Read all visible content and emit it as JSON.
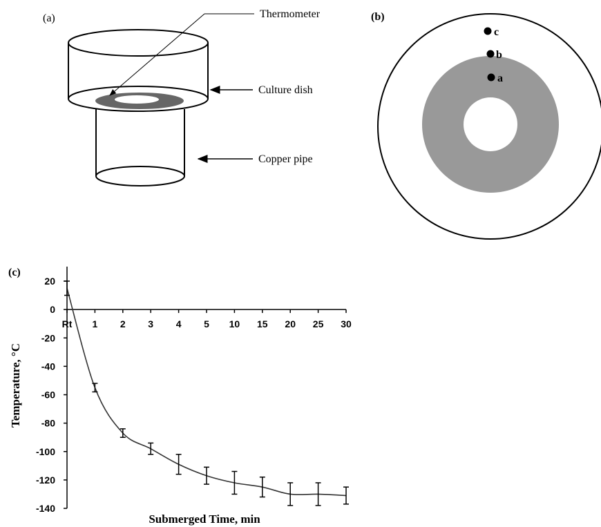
{
  "panel_a": {
    "label": "(a)",
    "callouts": {
      "thermometer": "Thermometer",
      "culture_dish": "Culture dish",
      "copper_pipe": "Copper pipe"
    }
  },
  "panel_b": {
    "label": "(b)",
    "points": [
      "a",
      "b",
      "c"
    ],
    "colors": {
      "annulus": "#999999"
    }
  },
  "panel_c": {
    "label": "(c)",
    "chart_data": {
      "type": "line",
      "xlabel": "Submerged Time, min",
      "ylabel": "Temperature, °C",
      "categories": [
        "Rt",
        "1",
        "2",
        "3",
        "4",
        "5",
        "10",
        "15",
        "20",
        "25",
        "30"
      ],
      "values": [
        15,
        -55,
        -87,
        -98,
        -109,
        -117,
        -122,
        -125,
        -130,
        -130,
        -131
      ],
      "error": [
        5,
        3,
        3,
        4,
        7,
        6,
        8,
        7,
        8,
        8,
        6
      ],
      "ylim": [
        -140,
        20
      ],
      "yticks": [
        20,
        0,
        -20,
        -40,
        -60,
        -80,
        -100,
        -120,
        -140
      ],
      "grid": false,
      "legend": "none"
    }
  }
}
